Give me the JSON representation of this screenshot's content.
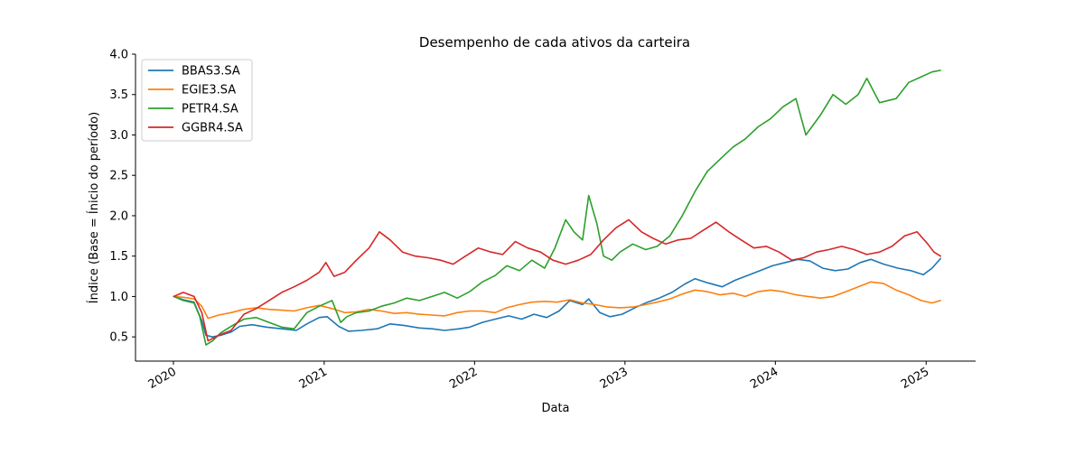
{
  "chart_data": {
    "type": "line",
    "title": "Desempenho de cada ativos da carteira",
    "xlabel": "Data",
    "ylabel": "Índice (Base = Ínicio do período)",
    "x_axis": {
      "type": "date",
      "range": [
        "2019-10-01",
        "2025-05-01"
      ],
      "ticks": [
        {
          "date": "2020-01-01",
          "label": "2020"
        },
        {
          "date": "2021-01-01",
          "label": "2021"
        },
        {
          "date": "2022-01-01",
          "label": "2022"
        },
        {
          "date": "2023-01-01",
          "label": "2023"
        },
        {
          "date": "2024-01-01",
          "label": "2024"
        },
        {
          "date": "2025-01-01",
          "label": "2025"
        }
      ]
    },
    "y_axis": {
      "range": [
        0.2,
        4.0
      ],
      "ticks": [
        0.5,
        1.0,
        1.5,
        2.0,
        2.5,
        3.0,
        3.5,
        4.0
      ],
      "tick_labels": [
        "0.5",
        "1.0",
        "1.5",
        "2.0",
        "2.5",
        "3.0",
        "3.5",
        "4.0"
      ]
    },
    "grid": false,
    "legend": "top-left",
    "series": [
      {
        "name": "BBAS3.SA",
        "color": "#1f77b4",
        "points": [
          [
            "2020-01-02",
            1.0
          ],
          [
            "2020-01-25",
            0.96
          ],
          [
            "2020-02-20",
            0.93
          ],
          [
            "2020-03-10",
            0.7
          ],
          [
            "2020-03-20",
            0.52
          ],
          [
            "2020-04-05",
            0.5
          ],
          [
            "2020-04-25",
            0.52
          ],
          [
            "2020-05-20",
            0.56
          ],
          [
            "2020-06-10",
            0.63
          ],
          [
            "2020-07-10",
            0.65
          ],
          [
            "2020-08-15",
            0.62
          ],
          [
            "2020-09-20",
            0.6
          ],
          [
            "2020-10-25",
            0.58
          ],
          [
            "2020-11-20",
            0.66
          ],
          [
            "2020-12-20",
            0.74
          ],
          [
            "2021-01-08",
            0.75
          ],
          [
            "2021-02-05",
            0.63
          ],
          [
            "2021-03-01",
            0.57
          ],
          [
            "2021-04-01",
            0.58
          ],
          [
            "2021-05-10",
            0.6
          ],
          [
            "2021-06-10",
            0.66
          ],
          [
            "2021-07-15",
            0.64
          ],
          [
            "2021-08-20",
            0.61
          ],
          [
            "2021-09-20",
            0.6
          ],
          [
            "2021-10-20",
            0.58
          ],
          [
            "2021-11-25",
            0.6
          ],
          [
            "2021-12-20",
            0.62
          ],
          [
            "2022-01-20",
            0.68
          ],
          [
            "2022-02-20",
            0.72
          ],
          [
            "2022-03-25",
            0.76
          ],
          [
            "2022-04-25",
            0.72
          ],
          [
            "2022-05-25",
            0.78
          ],
          [
            "2022-06-25",
            0.74
          ],
          [
            "2022-07-25",
            0.82
          ],
          [
            "2022-08-20",
            0.95
          ],
          [
            "2022-09-20",
            0.9
          ],
          [
            "2022-10-05",
            0.97
          ],
          [
            "2022-11-01",
            0.8
          ],
          [
            "2022-11-25",
            0.75
          ],
          [
            "2022-12-25",
            0.78
          ],
          [
            "2023-01-25",
            0.86
          ],
          [
            "2023-02-25",
            0.93
          ],
          [
            "2023-03-25",
            0.98
          ],
          [
            "2023-04-25",
            1.05
          ],
          [
            "2023-05-25",
            1.15
          ],
          [
            "2023-06-20",
            1.22
          ],
          [
            "2023-07-20",
            1.17
          ],
          [
            "2023-08-25",
            1.12
          ],
          [
            "2023-09-25",
            1.2
          ],
          [
            "2023-10-25",
            1.26
          ],
          [
            "2023-11-25",
            1.32
          ],
          [
            "2023-12-25",
            1.38
          ],
          [
            "2024-01-25",
            1.42
          ],
          [
            "2024-02-25",
            1.46
          ],
          [
            "2024-03-25",
            1.44
          ],
          [
            "2024-04-25",
            1.35
          ],
          [
            "2024-05-25",
            1.32
          ],
          [
            "2024-06-25",
            1.34
          ],
          [
            "2024-07-25",
            1.42
          ],
          [
            "2024-08-20",
            1.46
          ],
          [
            "2024-09-20",
            1.4
          ],
          [
            "2024-10-25",
            1.35
          ],
          [
            "2024-11-25",
            1.32
          ],
          [
            "2024-12-25",
            1.27
          ],
          [
            "2025-01-15",
            1.35
          ],
          [
            "2025-02-05",
            1.47
          ]
        ]
      },
      {
        "name": "EGIE3.SA",
        "color": "#ff7f0e",
        "points": [
          [
            "2020-01-02",
            1.0
          ],
          [
            "2020-01-25",
            0.99
          ],
          [
            "2020-02-20",
            0.97
          ],
          [
            "2020-03-10",
            0.88
          ],
          [
            "2020-03-25",
            0.73
          ],
          [
            "2020-04-20",
            0.77
          ],
          [
            "2020-05-20",
            0.8
          ],
          [
            "2020-06-20",
            0.84
          ],
          [
            "2020-07-20",
            0.86
          ],
          [
            "2020-08-20",
            0.84
          ],
          [
            "2020-09-20",
            0.83
          ],
          [
            "2020-10-20",
            0.82
          ],
          [
            "2020-11-20",
            0.86
          ],
          [
            "2020-12-20",
            0.89
          ],
          [
            "2021-01-20",
            0.85
          ],
          [
            "2021-02-20",
            0.8
          ],
          [
            "2021-03-20",
            0.81
          ],
          [
            "2021-04-20",
            0.84
          ],
          [
            "2021-05-20",
            0.82
          ],
          [
            "2021-06-20",
            0.79
          ],
          [
            "2021-07-20",
            0.8
          ],
          [
            "2021-08-20",
            0.78
          ],
          [
            "2021-09-20",
            0.77
          ],
          [
            "2021-10-20",
            0.76
          ],
          [
            "2021-11-20",
            0.8
          ],
          [
            "2021-12-20",
            0.82
          ],
          [
            "2022-01-20",
            0.82
          ],
          [
            "2022-02-20",
            0.8
          ],
          [
            "2022-03-20",
            0.86
          ],
          [
            "2022-04-20",
            0.9
          ],
          [
            "2022-05-20",
            0.93
          ],
          [
            "2022-06-20",
            0.94
          ],
          [
            "2022-07-20",
            0.93
          ],
          [
            "2022-08-20",
            0.96
          ],
          [
            "2022-09-20",
            0.92
          ],
          [
            "2022-10-20",
            0.9
          ],
          [
            "2022-11-20",
            0.87
          ],
          [
            "2022-12-20",
            0.86
          ],
          [
            "2023-01-20",
            0.87
          ],
          [
            "2023-02-20",
            0.9
          ],
          [
            "2023-03-20",
            0.93
          ],
          [
            "2023-04-20",
            0.97
          ],
          [
            "2023-05-20",
            1.03
          ],
          [
            "2023-06-20",
            1.08
          ],
          [
            "2023-07-20",
            1.06
          ],
          [
            "2023-08-20",
            1.02
          ],
          [
            "2023-09-20",
            1.04
          ],
          [
            "2023-10-20",
            1.0
          ],
          [
            "2023-11-20",
            1.06
          ],
          [
            "2023-12-20",
            1.08
          ],
          [
            "2024-01-20",
            1.06
          ],
          [
            "2024-02-20",
            1.02
          ],
          [
            "2024-03-20",
            1.0
          ],
          [
            "2024-04-20",
            0.98
          ],
          [
            "2024-05-20",
            1.0
          ],
          [
            "2024-06-20",
            1.06
          ],
          [
            "2024-07-20",
            1.12
          ],
          [
            "2024-08-20",
            1.18
          ],
          [
            "2024-09-20",
            1.16
          ],
          [
            "2024-10-20",
            1.08
          ],
          [
            "2024-11-20",
            1.02
          ],
          [
            "2024-12-20",
            0.95
          ],
          [
            "2025-01-15",
            0.92
          ],
          [
            "2025-02-05",
            0.95
          ]
        ]
      },
      {
        "name": "PETR4.SA",
        "color": "#2ca02c",
        "points": [
          [
            "2020-01-02",
            1.0
          ],
          [
            "2020-01-25",
            0.95
          ],
          [
            "2020-02-20",
            0.92
          ],
          [
            "2020-03-05",
            0.75
          ],
          [
            "2020-03-20",
            0.4
          ],
          [
            "2020-04-05",
            0.45
          ],
          [
            "2020-04-25",
            0.55
          ],
          [
            "2020-05-20",
            0.63
          ],
          [
            "2020-06-20",
            0.72
          ],
          [
            "2020-07-20",
            0.74
          ],
          [
            "2020-08-20",
            0.68
          ],
          [
            "2020-09-20",
            0.62
          ],
          [
            "2020-10-20",
            0.6
          ],
          [
            "2020-11-20",
            0.8
          ],
          [
            "2020-12-20",
            0.88
          ],
          [
            "2021-01-20",
            0.95
          ],
          [
            "2021-02-10",
            0.68
          ],
          [
            "2021-02-25",
            0.75
          ],
          [
            "2021-03-20",
            0.8
          ],
          [
            "2021-04-20",
            0.82
          ],
          [
            "2021-05-20",
            0.88
          ],
          [
            "2021-06-20",
            0.92
          ],
          [
            "2021-07-20",
            0.98
          ],
          [
            "2021-08-20",
            0.95
          ],
          [
            "2021-09-20",
            1.0
          ],
          [
            "2021-10-20",
            1.05
          ],
          [
            "2021-11-20",
            0.98
          ],
          [
            "2021-12-20",
            1.06
          ],
          [
            "2022-01-20",
            1.18
          ],
          [
            "2022-02-20",
            1.26
          ],
          [
            "2022-03-20",
            1.38
          ],
          [
            "2022-04-20",
            1.32
          ],
          [
            "2022-05-20",
            1.45
          ],
          [
            "2022-06-20",
            1.35
          ],
          [
            "2022-07-15",
            1.6
          ],
          [
            "2022-08-10",
            1.95
          ],
          [
            "2022-08-30",
            1.8
          ],
          [
            "2022-09-20",
            1.7
          ],
          [
            "2022-10-05",
            2.25
          ],
          [
            "2022-10-25",
            1.9
          ],
          [
            "2022-11-10",
            1.5
          ],
          [
            "2022-11-30",
            1.45
          ],
          [
            "2022-12-20",
            1.55
          ],
          [
            "2023-01-20",
            1.65
          ],
          [
            "2023-02-20",
            1.58
          ],
          [
            "2023-03-20",
            1.62
          ],
          [
            "2023-04-20",
            1.75
          ],
          [
            "2023-05-20",
            2.0
          ],
          [
            "2023-06-20",
            2.3
          ],
          [
            "2023-07-20",
            2.55
          ],
          [
            "2023-08-20",
            2.7
          ],
          [
            "2023-09-20",
            2.85
          ],
          [
            "2023-10-20",
            2.95
          ],
          [
            "2023-11-20",
            3.1
          ],
          [
            "2023-12-20",
            3.2
          ],
          [
            "2024-01-20",
            3.35
          ],
          [
            "2024-02-20",
            3.45
          ],
          [
            "2024-03-15",
            3.0
          ],
          [
            "2024-04-20",
            3.25
          ],
          [
            "2024-05-20",
            3.5
          ],
          [
            "2024-06-20",
            3.38
          ],
          [
            "2024-07-20",
            3.5
          ],
          [
            "2024-08-10",
            3.7
          ],
          [
            "2024-09-10",
            3.4
          ],
          [
            "2024-10-20",
            3.45
          ],
          [
            "2024-11-20",
            3.65
          ],
          [
            "2024-12-20",
            3.72
          ],
          [
            "2025-01-15",
            3.78
          ],
          [
            "2025-02-05",
            3.8
          ]
        ]
      },
      {
        "name": "GGBR4.SA",
        "color": "#d62728",
        "points": [
          [
            "2020-01-02",
            1.0
          ],
          [
            "2020-01-25",
            1.05
          ],
          [
            "2020-02-20",
            1.0
          ],
          [
            "2020-03-10",
            0.8
          ],
          [
            "2020-03-25",
            0.45
          ],
          [
            "2020-04-20",
            0.52
          ],
          [
            "2020-05-20",
            0.58
          ],
          [
            "2020-06-20",
            0.78
          ],
          [
            "2020-07-20",
            0.85
          ],
          [
            "2020-08-20",
            0.95
          ],
          [
            "2020-09-20",
            1.05
          ],
          [
            "2020-10-20",
            1.12
          ],
          [
            "2020-11-20",
            1.2
          ],
          [
            "2020-12-20",
            1.3
          ],
          [
            "2021-01-05",
            1.42
          ],
          [
            "2021-01-25",
            1.25
          ],
          [
            "2021-02-20",
            1.3
          ],
          [
            "2021-03-20",
            1.45
          ],
          [
            "2021-04-20",
            1.6
          ],
          [
            "2021-05-15",
            1.8
          ],
          [
            "2021-06-10",
            1.7
          ],
          [
            "2021-07-10",
            1.55
          ],
          [
            "2021-08-10",
            1.5
          ],
          [
            "2021-09-10",
            1.48
          ],
          [
            "2021-10-10",
            1.45
          ],
          [
            "2021-11-10",
            1.4
          ],
          [
            "2021-12-10",
            1.5
          ],
          [
            "2022-01-10",
            1.6
          ],
          [
            "2022-02-10",
            1.55
          ],
          [
            "2022-03-10",
            1.52
          ],
          [
            "2022-04-10",
            1.68
          ],
          [
            "2022-05-10",
            1.6
          ],
          [
            "2022-06-10",
            1.55
          ],
          [
            "2022-07-10",
            1.45
          ],
          [
            "2022-08-10",
            1.4
          ],
          [
            "2022-09-10",
            1.45
          ],
          [
            "2022-10-10",
            1.52
          ],
          [
            "2022-11-10",
            1.7
          ],
          [
            "2022-12-10",
            1.85
          ],
          [
            "2023-01-10",
            1.95
          ],
          [
            "2023-02-10",
            1.8
          ],
          [
            "2023-03-10",
            1.72
          ],
          [
            "2023-04-10",
            1.65
          ],
          [
            "2023-05-10",
            1.7
          ],
          [
            "2023-06-10",
            1.72
          ],
          [
            "2023-07-10",
            1.82
          ],
          [
            "2023-08-10",
            1.92
          ],
          [
            "2023-09-10",
            1.8
          ],
          [
            "2023-10-10",
            1.7
          ],
          [
            "2023-11-10",
            1.6
          ],
          [
            "2023-12-10",
            1.62
          ],
          [
            "2024-01-10",
            1.55
          ],
          [
            "2024-02-10",
            1.45
          ],
          [
            "2024-03-10",
            1.48
          ],
          [
            "2024-04-10",
            1.55
          ],
          [
            "2024-05-10",
            1.58
          ],
          [
            "2024-06-10",
            1.62
          ],
          [
            "2024-07-10",
            1.58
          ],
          [
            "2024-08-10",
            1.52
          ],
          [
            "2024-09-10",
            1.55
          ],
          [
            "2024-10-10",
            1.62
          ],
          [
            "2024-11-10",
            1.75
          ],
          [
            "2024-12-10",
            1.8
          ],
          [
            "2025-01-05",
            1.65
          ],
          [
            "2025-01-20",
            1.55
          ],
          [
            "2025-02-05",
            1.5
          ]
        ]
      }
    ]
  }
}
